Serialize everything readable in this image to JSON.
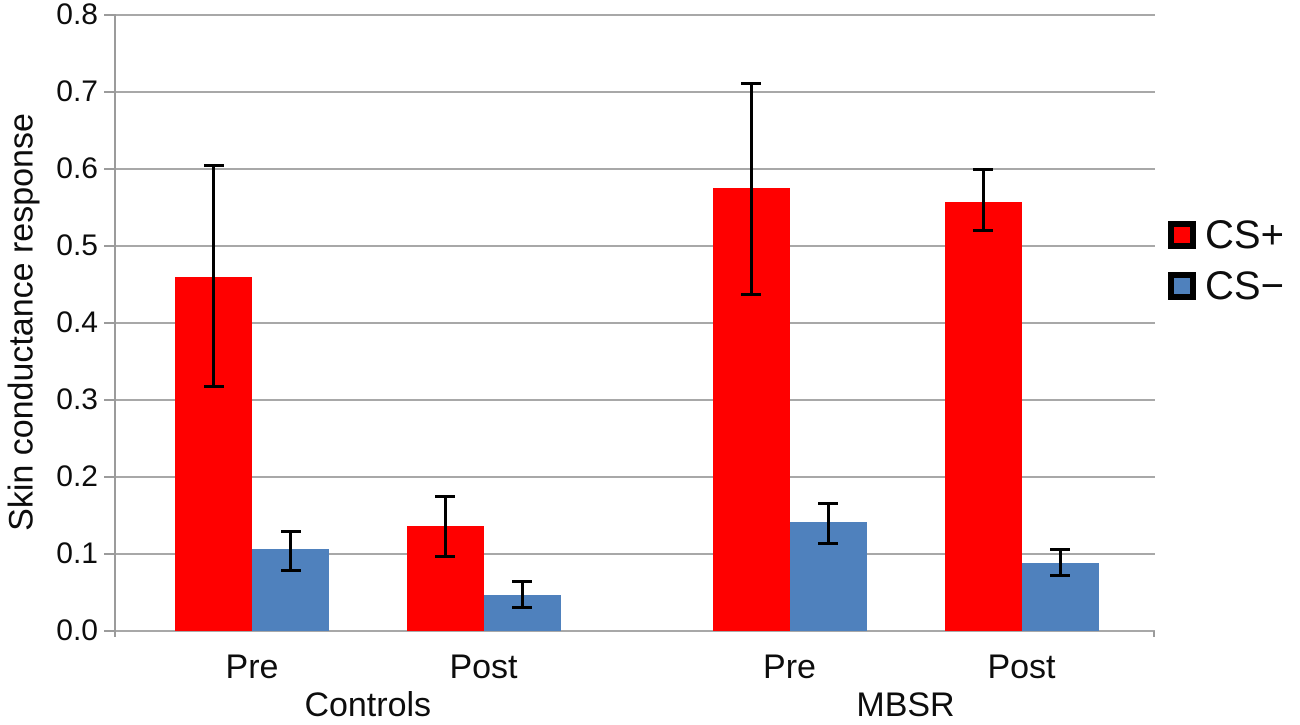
{
  "figure": {
    "background": "#ffffff"
  },
  "chart_data": {
    "type": "bar",
    "title": "",
    "xlabel": "",
    "ylabel": "Skin conductance response",
    "ylim": [
      0,
      0.8
    ],
    "ytick_step": 0.1,
    "yticks": [
      "0.0",
      "0.1",
      "0.2",
      "0.3",
      "0.4",
      "0.5",
      "0.6",
      "0.7",
      "0.8"
    ],
    "categories": [
      "Pre",
      "Post",
      "Pre",
      "Post"
    ],
    "group_labels": [
      {
        "label": "Controls",
        "categories": [
          0,
          1
        ]
      },
      {
        "label": "MBSR",
        "categories": [
          2,
          3
        ]
      }
    ],
    "series": [
      {
        "name": "CS+",
        "color": "#ff0000",
        "values": [
          0.46,
          0.137,
          0.575,
          0.557
        ],
        "err_upper": [
          0.605,
          0.175,
          0.712,
          0.6
        ],
        "err_lower": [
          0.317,
          0.096,
          0.437,
          0.519
        ]
      },
      {
        "name": "CS−",
        "color": "#4f81bd",
        "values": [
          0.106,
          0.047,
          0.141,
          0.088
        ],
        "err_upper": [
          0.13,
          0.065,
          0.166,
          0.107
        ],
        "err_lower": [
          0.078,
          0.03,
          0.113,
          0.072
        ]
      }
    ],
    "error_bars": true,
    "grid": "horizontal",
    "grid_color": "#a8a8a8",
    "axis_color": "#9b9b9b",
    "error_bar_color": "#000000",
    "text_color": "#0d0d0d",
    "legend_position": "right"
  }
}
